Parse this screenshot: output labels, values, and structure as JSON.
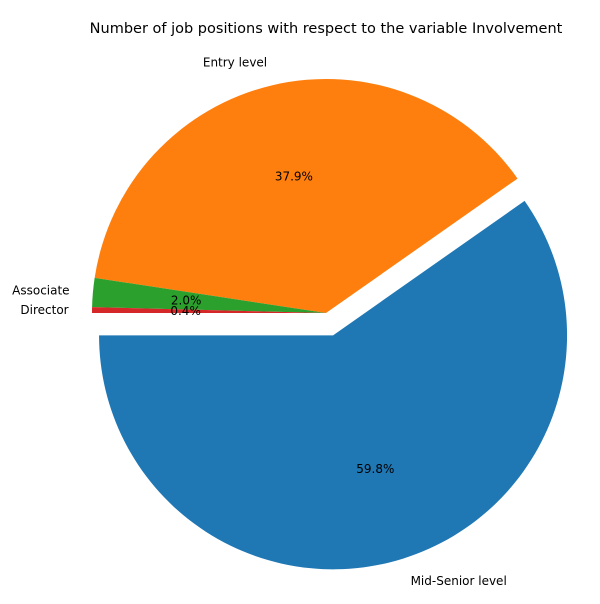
{
  "chart_data": {
    "type": "pie",
    "title": "Number of job positions with respect to the variable Involvement",
    "slices": [
      {
        "label": "Mid-Senior level",
        "percent": 59.8,
        "pct_label": "59.8%",
        "color": "#1f77b4",
        "exploded": true
      },
      {
        "label": "Entry level",
        "percent": 37.9,
        "pct_label": "37.9%",
        "color": "#ff7f0e",
        "exploded": false
      },
      {
        "label": "Associate",
        "percent": 2.0,
        "pct_label": "2.0%",
        "color": "#2ca02c",
        "exploded": false
      },
      {
        "label": "Director",
        "percent": 0.4,
        "pct_label": "0.4%",
        "color": "#d62728",
        "exploded": false
      }
    ],
    "legend": "none"
  }
}
